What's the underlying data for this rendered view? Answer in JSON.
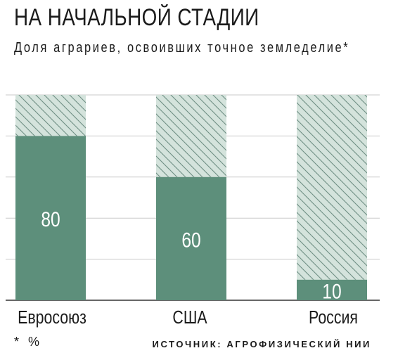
{
  "header": {
    "title": "НА НАЧАЛЬНОЙ СТАДИИ",
    "subtitle": "Доля аграриев, освоивших точное земледелие*"
  },
  "footer": {
    "footnote": "* %",
    "source": "ИСТОЧНИК: АГРОФИЗИЧЕСКИЙ НИИ"
  },
  "colors": {
    "bar": "#5d8f7b",
    "hatch_bg": "#d4e3dc",
    "hatch_line": "#6f8f84",
    "grid": "#c9c9c9",
    "axis": "#333333"
  },
  "chart_data": {
    "type": "bar",
    "categories": [
      "Евросоюз",
      "США",
      "Россия"
    ],
    "values": [
      80,
      60,
      10
    ],
    "ylim": [
      0,
      100
    ],
    "grid": true,
    "data_labels": true,
    "remainder_hatched": true
  }
}
